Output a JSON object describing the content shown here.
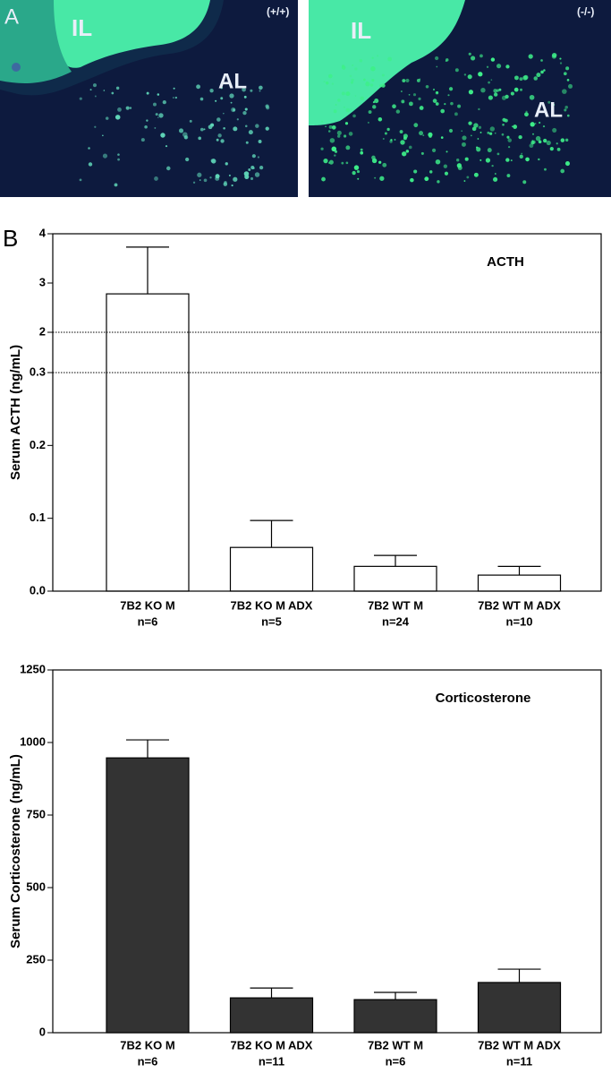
{
  "panel_a": {
    "label": "A",
    "images": [
      {
        "genotype": "(+/+)",
        "lobe_labels": [
          "IL",
          "AL"
        ]
      },
      {
        "genotype": "(-/-)",
        "lobe_labels": [
          "IL",
          "AL"
        ]
      }
    ]
  },
  "panel_b": "B",
  "chart_data": [
    {
      "type": "bar",
      "title": "ACTH",
      "y_label": "Serum ACTH (ng/mL)",
      "categories": [
        "7B2 KO M",
        "7B2 KO M ADX",
        "7B2 WT M",
        "7B2 WT M ADX"
      ],
      "n_labels": [
        "n=6",
        "n=5",
        "n=24",
        "n=10"
      ],
      "values": [
        2.78,
        0.06,
        0.034,
        0.022
      ],
      "errors": [
        0.95,
        0.037,
        0.015,
        0.012
      ],
      "color": "#ffffff",
      "ylim": [
        0,
        4
      ],
      "y_break": [
        0.3,
        2
      ],
      "yticks": [
        {
          "value": 0,
          "label": "0.0"
        },
        0.1,
        0.2,
        0.3,
        2,
        3,
        4
      ]
    },
    {
      "type": "bar",
      "title": "Corticosterone",
      "y_label": "Serum Corticosterone (ng/mL)",
      "categories": [
        "7B2 KO M",
        "7B2 KO M ADX",
        "7B2 WT M",
        "7B2 WT M ADX"
      ],
      "n_labels": [
        "n=6",
        "n=11",
        "n=6",
        "n=11"
      ],
      "values": [
        947,
        120,
        114,
        173
      ],
      "errors": [
        62,
        34,
        25,
        46
      ],
      "color": "#333333",
      "ylim": [
        0,
        1250
      ],
      "yticks": [
        0,
        250,
        500,
        750,
        1000,
        1250
      ]
    }
  ]
}
